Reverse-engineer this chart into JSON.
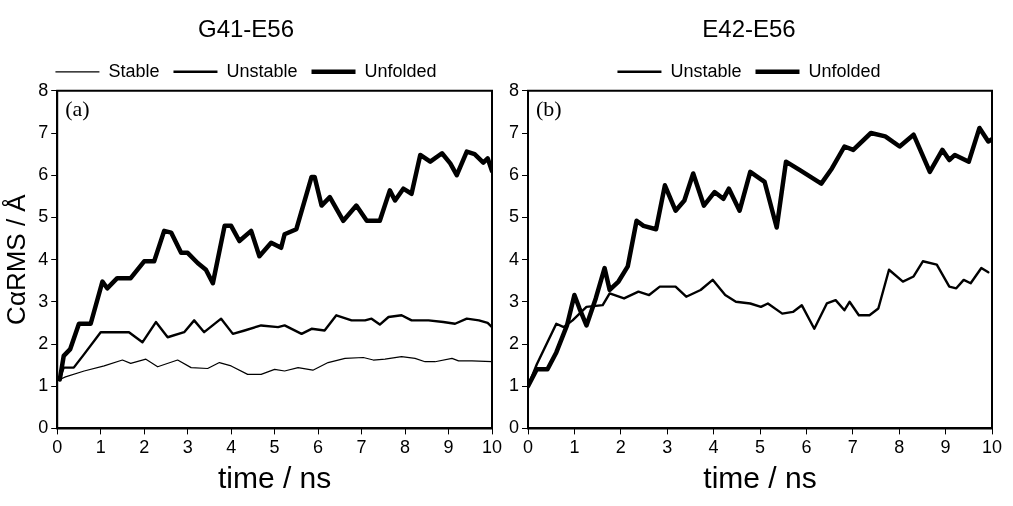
{
  "chart_data": [
    {
      "type": "line",
      "title": "G41-E56",
      "xlabel": "time / ns",
      "ylabel": "CαRMS / Å",
      "legend": "top",
      "grid": false,
      "marker": "none",
      "line_style": "solid",
      "xlim": [
        0,
        10
      ],
      "xticks": [
        0,
        1,
        2,
        3,
        4,
        5,
        6,
        7,
        8,
        9,
        10
      ],
      "ylim": [
        0,
        8
      ],
      "yticks": [
        0,
        1,
        2,
        3,
        4,
        5,
        6,
        7,
        8
      ],
      "annotations": [
        "(a)"
      ],
      "series": [
        {
          "name": "Stable",
          "color": "#000000",
          "x": [
            0.06,
            0.19,
            0.62,
            1.08,
            1.5,
            1.69,
            2.04,
            2.31,
            2.77,
            3.08,
            3.46,
            3.73,
            4.0,
            4.38,
            4.69,
            5.0,
            5.23,
            5.54,
            5.88,
            6.23,
            6.62,
            7.04,
            7.27,
            7.54,
            7.92,
            8.23,
            8.46,
            8.69,
            9.08,
            9.23,
            9.54,
            10
          ],
          "values": [
            1.16,
            1.22,
            1.36,
            1.48,
            1.62,
            1.54,
            1.64,
            1.46,
            1.62,
            1.44,
            1.42,
            1.56,
            1.48,
            1.28,
            1.28,
            1.4,
            1.36,
            1.44,
            1.38,
            1.56,
            1.66,
            1.68,
            1.62,
            1.64,
            1.7,
            1.66,
            1.58,
            1.58,
            1.66,
            1.6,
            1.6,
            1.58
          ]
        },
        {
          "name": "Unstable",
          "color": "#000000",
          "x": [
            0.06,
            0.15,
            0.38,
            0.62,
            1.0,
            1.19,
            1.65,
            1.96,
            2.27,
            2.54,
            2.92,
            3.15,
            3.38,
            3.77,
            4.04,
            4.31,
            4.69,
            5.08,
            5.23,
            5.62,
            5.85,
            6.15,
            6.42,
            6.77,
            7.08,
            7.23,
            7.42,
            7.62,
            7.92,
            8.15,
            8.54,
            8.88,
            9.15,
            9.42,
            9.7,
            9.9,
            10
          ],
          "values": [
            1.2,
            1.44,
            1.44,
            1.76,
            2.28,
            2.28,
            2.28,
            2.04,
            2.52,
            2.16,
            2.28,
            2.56,
            2.28,
            2.6,
            2.24,
            2.32,
            2.44,
            2.4,
            2.44,
            2.24,
            2.36,
            2.32,
            2.68,
            2.56,
            2.56,
            2.6,
            2.46,
            2.64,
            2.68,
            2.56,
            2.56,
            2.52,
            2.48,
            2.6,
            2.56,
            2.5,
            2.4
          ]
        },
        {
          "name": "Unfolded",
          "color": "#000000",
          "x": [
            0.06,
            0.15,
            0.3,
            0.5,
            0.77,
            1.04,
            1.15,
            1.38,
            1.69,
            2.0,
            2.23,
            2.46,
            2.62,
            2.85,
            3.0,
            3.23,
            3.42,
            3.58,
            3.85,
            4.0,
            4.19,
            4.46,
            4.65,
            4.92,
            5.15,
            5.23,
            5.5,
            5.85,
            5.92,
            6.08,
            6.27,
            6.58,
            6.88,
            7.12,
            7.42,
            7.65,
            7.77,
            7.96,
            8.15,
            8.35,
            8.58,
            8.85,
            9.04,
            9.19,
            9.42,
            9.6,
            9.8,
            9.9,
            10
          ],
          "values": [
            1.16,
            1.72,
            1.88,
            2.48,
            2.48,
            3.48,
            3.32,
            3.56,
            3.56,
            3.96,
            3.96,
            4.68,
            4.64,
            4.16,
            4.16,
            3.92,
            3.76,
            3.44,
            4.8,
            4.8,
            4.44,
            4.68,
            4.08,
            4.4,
            4.28,
            4.6,
            4.72,
            5.96,
            5.96,
            5.28,
            5.48,
            4.92,
            5.28,
            4.92,
            4.92,
            5.64,
            5.4,
            5.68,
            5.56,
            6.48,
            6.32,
            6.52,
            6.28,
            6.0,
            6.56,
            6.5,
            6.3,
            6.4,
            6.1
          ]
        }
      ]
    },
    {
      "type": "line",
      "title": "E42-E56",
      "xlabel": "time / ns",
      "legend": "top",
      "grid": false,
      "marker": "none",
      "line_style": "solid",
      "xlim": [
        0,
        10
      ],
      "xticks": [
        0,
        1,
        2,
        3,
        4,
        5,
        6,
        7,
        8,
        9,
        10
      ],
      "ylim": [
        0,
        8
      ],
      "yticks": [
        0,
        1,
        2,
        3,
        4,
        5,
        6,
        7,
        8
      ],
      "annotations": [
        "(b)"
      ],
      "series": [
        {
          "name": "Unstable",
          "color": "#000000",
          "x": [
            0,
            0.19,
            0.61,
            0.77,
            0.96,
            1.26,
            1.61,
            1.76,
            2.07,
            2.38,
            2.61,
            2.84,
            3.18,
            3.41,
            3.72,
            3.98,
            4.25,
            4.48,
            4.79,
            5.02,
            5.17,
            5.48,
            5.71,
            5.9,
            6.17,
            6.44,
            6.63,
            6.82,
            6.93,
            7.13,
            7.36,
            7.55,
            7.78,
            8.08,
            8.31,
            8.51,
            8.81,
            9.08,
            9.23,
            9.39,
            9.54,
            9.77,
            9.92
          ],
          "values": [
            1.0,
            1.52,
            2.48,
            2.4,
            2.56,
            2.88,
            2.92,
            3.2,
            3.08,
            3.24,
            3.16,
            3.36,
            3.36,
            3.12,
            3.28,
            3.52,
            3.16,
            3.0,
            2.96,
            2.88,
            2.96,
            2.72,
            2.76,
            2.92,
            2.36,
            2.96,
            3.04,
            2.8,
            3.0,
            2.68,
            2.68,
            2.84,
            3.76,
            3.48,
            3.6,
            3.96,
            3.88,
            3.36,
            3.32,
            3.52,
            3.44,
            3.8,
            3.7
          ]
        },
        {
          "name": "Unfolded",
          "color": "#000000",
          "x": [
            0,
            0.19,
            0.42,
            0.61,
            0.84,
            1.0,
            1.11,
            1.26,
            1.46,
            1.65,
            1.76,
            1.95,
            2.15,
            2.34,
            2.49,
            2.76,
            2.95,
            3.18,
            3.37,
            3.56,
            3.79,
            4.02,
            4.21,
            4.33,
            4.56,
            4.79,
            5.1,
            5.36,
            5.56,
            5.86,
            6.32,
            6.55,
            6.82,
            7.01,
            7.39,
            7.7,
            8.01,
            8.31,
            8.66,
            8.93,
            9.08,
            9.2,
            9.5,
            9.73,
            9.92,
            10
          ],
          "values": [
            1.0,
            1.4,
            1.4,
            1.8,
            2.44,
            3.16,
            2.84,
            2.44,
            3.08,
            3.8,
            3.28,
            3.48,
            3.84,
            4.92,
            4.8,
            4.72,
            5.76,
            5.16,
            5.4,
            6.04,
            5.28,
            5.6,
            5.44,
            5.68,
            5.16,
            6.08,
            5.84,
            4.76,
            6.32,
            6.12,
            5.8,
            6.16,
            6.68,
            6.6,
            7.0,
            6.92,
            6.68,
            6.96,
            6.08,
            6.6,
            6.36,
            6.48,
            6.32,
            7.12,
            6.8,
            6.85
          ]
        }
      ]
    }
  ]
}
